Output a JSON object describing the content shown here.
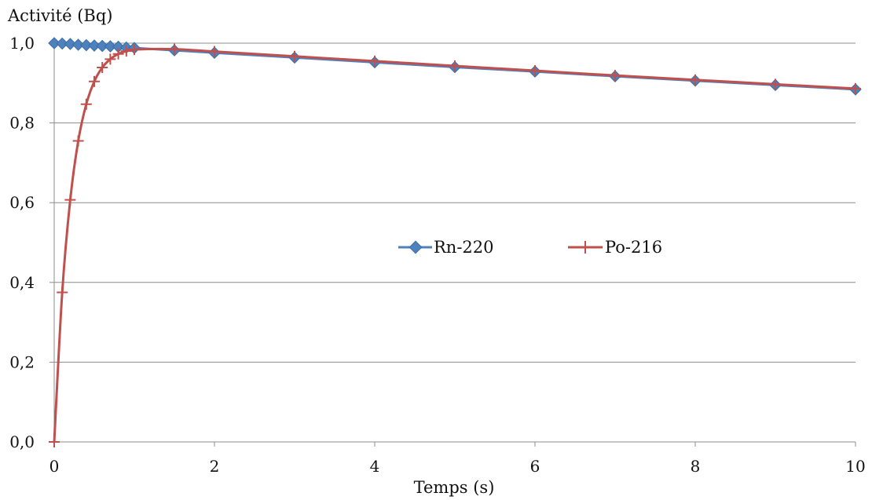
{
  "chart_data": {
    "type": "line",
    "title": "",
    "xlabel": "Temps (s)",
    "ylabel": "Activité (Bq)",
    "xlim": [
      0,
      10
    ],
    "ylim": [
      0,
      1
    ],
    "x_ticks": [
      0,
      2,
      4,
      6,
      8,
      10
    ],
    "x_tick_labels": [
      "0",
      "2",
      "4",
      "6",
      "8",
      "10"
    ],
    "y_ticks": [
      0,
      0.2,
      0.4,
      0.6,
      0.8,
      1.0
    ],
    "y_tick_labels": [
      "0,0",
      "0,2",
      "0,4",
      "0,6",
      "0,8",
      "1,0"
    ],
    "grid": "horizontal",
    "legend_position": "center",
    "series": [
      {
        "name": "Rn-220",
        "color": "#4F81BD",
        "marker": "diamond",
        "x": [
          0,
          0.1,
          0.2,
          0.3,
          0.4,
          0.5,
          0.6,
          0.7,
          0.8,
          0.9,
          1.0,
          1.5,
          2,
          3,
          4,
          5,
          6,
          7,
          8,
          9,
          10
        ],
        "y": [
          1.0,
          0.999,
          0.998,
          0.996,
          0.995,
          0.994,
          0.993,
          0.992,
          0.991,
          0.989,
          0.988,
          0.982,
          0.976,
          0.964,
          0.952,
          0.94,
          0.929,
          0.917,
          0.906,
          0.895,
          0.884
        ]
      },
      {
        "name": "Po-216",
        "color": "#C0504D",
        "marker": "plus",
        "x": [
          0,
          0.1,
          0.2,
          0.3,
          0.4,
          0.5,
          0.6,
          0.7,
          0.8,
          0.9,
          1.0,
          1.5,
          2,
          3,
          4,
          5,
          6,
          7,
          8,
          9,
          10
        ],
        "y": [
          0.0,
          0.375,
          0.607,
          0.755,
          0.847,
          0.904,
          0.939,
          0.96,
          0.973,
          0.98,
          0.984,
          0.985,
          0.979,
          0.967,
          0.955,
          0.943,
          0.931,
          0.919,
          0.908,
          0.897,
          0.886
        ]
      }
    ]
  }
}
